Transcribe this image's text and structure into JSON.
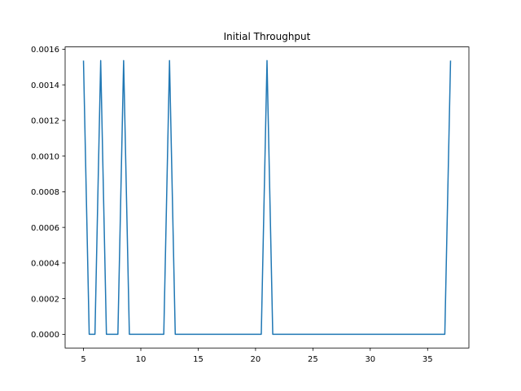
{
  "chart_data": {
    "type": "line",
    "title": "Initial Throughput",
    "xlabel": "",
    "ylabel": "",
    "xlim": [
      3.4,
      38.6
    ],
    "ylim": [
      -7.68e-05,
      0.0016128
    ],
    "xticks": [
      5,
      10,
      15,
      20,
      25,
      30,
      35
    ],
    "xtick_labels": [
      "5",
      "10",
      "15",
      "20",
      "25",
      "30",
      "35"
    ],
    "yticks": [
      0,
      0.0002,
      0.0004,
      0.0006,
      0.0008,
      0.001,
      0.0012,
      0.0014,
      0.0016
    ],
    "ytick_labels": [
      "0.0000",
      "0.0002",
      "0.0004",
      "0.0006",
      "0.0008",
      "0.0010",
      "0.0012",
      "0.0014",
      "0.0016"
    ],
    "grid": false,
    "series": [
      {
        "color": "#1f77b4",
        "x": [
          5.0,
          5.5,
          6.0,
          6.5,
          7.0,
          7.5,
          8.0,
          8.5,
          9.0,
          12.0,
          12.5,
          13.0,
          20.5,
          21.0,
          21.5,
          36.5,
          37.0
        ],
        "y": [
          0.001536,
          0,
          0,
          0.001536,
          0,
          0,
          0,
          0.001536,
          0,
          0,
          0.001536,
          0,
          0,
          0.001536,
          0,
          0,
          0.001536
        ]
      }
    ]
  }
}
